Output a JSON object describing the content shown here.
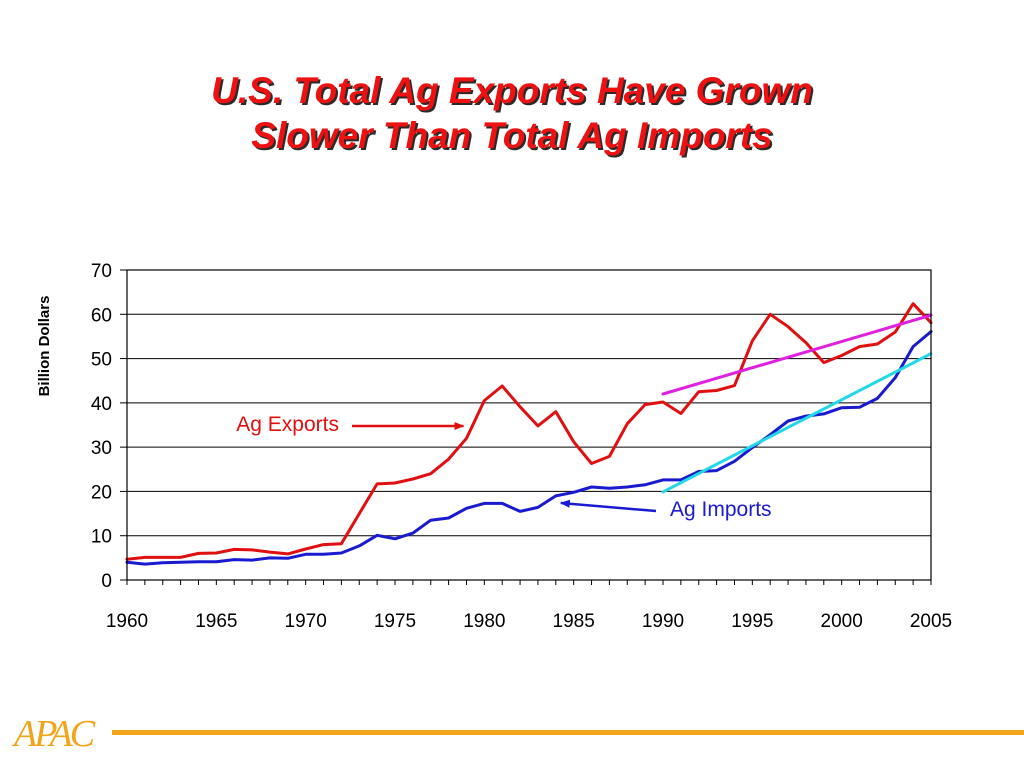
{
  "title": {
    "line1": "U.S. Total Ag Exports Have Grown",
    "line2": "Slower Than Total Ag Imports"
  },
  "logo": {
    "text": "APAC",
    "color": "#f2a51a"
  },
  "chart_data": {
    "type": "line",
    "title": "U.S. Total Ag Exports Have Grown Slower Than Total Ag Imports",
    "xlabel": "",
    "ylabel": "Billion Dollars",
    "xlim": [
      1960,
      2005
    ],
    "ylim": [
      0,
      70
    ],
    "x_ticks": [
      1960,
      1965,
      1970,
      1975,
      1980,
      1985,
      1990,
      1995,
      2000,
      2005
    ],
    "y_ticks": [
      0,
      10,
      20,
      30,
      40,
      50,
      60,
      70
    ],
    "grid": "horizontal",
    "legend": "none",
    "series": [
      {
        "name": "Ag Exports",
        "color": "#e01010",
        "x": [
          1960,
          1961,
          1962,
          1963,
          1964,
          1965,
          1966,
          1967,
          1968,
          1969,
          1970,
          1971,
          1972,
          1973,
          1974,
          1975,
          1976,
          1977,
          1978,
          1979,
          1980,
          1981,
          1982,
          1983,
          1984,
          1985,
          1986,
          1987,
          1988,
          1989,
          1990,
          1991,
          1992,
          1993,
          1994,
          1995,
          1996,
          1997,
          1998,
          1999,
          2000,
          2001,
          2002,
          2003,
          2004,
          2005
        ],
        "y": [
          4.7,
          5.1,
          5.1,
          5.1,
          6.0,
          6.1,
          6.9,
          6.8,
          6.3,
          5.9,
          7.0,
          8.0,
          8.2,
          15.0,
          21.7,
          21.9,
          22.8,
          24.0,
          27.3,
          32.0,
          40.5,
          43.8,
          39.1,
          34.8,
          38.0,
          31.2,
          26.3,
          27.9,
          35.3,
          39.6,
          40.2,
          37.6,
          42.5,
          42.8,
          43.9,
          54.0,
          60.0,
          57.2,
          53.6,
          49.1,
          50.7,
          52.7,
          53.3,
          56.0,
          62.4,
          58.1
        ]
      },
      {
        "name": "Ag Imports",
        "color": "#1a1ad0",
        "x": [
          1960,
          1961,
          1962,
          1963,
          1964,
          1965,
          1966,
          1967,
          1968,
          1969,
          1970,
          1971,
          1972,
          1973,
          1974,
          1975,
          1976,
          1977,
          1978,
          1979,
          1980,
          1981,
          1982,
          1983,
          1984,
          1985,
          1986,
          1987,
          1988,
          1989,
          1990,
          1991,
          1992,
          1993,
          1994,
          1995,
          1996,
          1997,
          1998,
          1999,
          2000,
          2001,
          2002,
          2003,
          2004,
          2005
        ],
        "y": [
          4.0,
          3.6,
          3.9,
          4.0,
          4.1,
          4.1,
          4.6,
          4.5,
          5.0,
          4.9,
          5.8,
          5.8,
          6.1,
          7.7,
          10.1,
          9.3,
          10.6,
          13.5,
          14.0,
          16.2,
          17.3,
          17.3,
          15.5,
          16.4,
          19.0,
          19.8,
          21.0,
          20.7,
          21.0,
          21.5,
          22.6,
          22.6,
          24.5,
          24.7,
          26.8,
          29.9,
          32.8,
          35.9,
          37.0,
          37.5,
          38.9,
          39.0,
          41.0,
          45.7,
          52.7,
          56.1
        ]
      },
      {
        "name": "Ag Exports trend",
        "color": "#e020e0",
        "x": [
          1990,
          2005
        ],
        "y": [
          42.0,
          59.8
        ]
      },
      {
        "name": "Ag Imports trend",
        "color": "#20d8e8",
        "x": [
          1990,
          2005
        ],
        "y": [
          19.9,
          51.1
        ]
      }
    ],
    "annotations": [
      {
        "text": "Ag Exports",
        "color": "#e01010",
        "target_x": 1979,
        "target_y": 34.5
      },
      {
        "text": "Ag Imports",
        "color": "#1a1ad0",
        "target_x": 1984,
        "target_y": 17.1
      }
    ]
  }
}
